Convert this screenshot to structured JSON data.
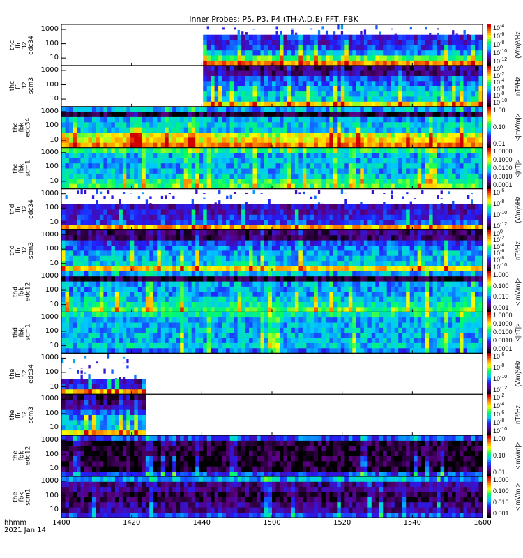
{
  "chart_data": {
    "type": "heatmap",
    "title": "Inner Probes: P5, P3, P4 (TH-A,D,E) FFT, FBK",
    "xlabel": "hhmm",
    "date_label": "2021 Jan 14",
    "x_ticks": [
      "1400",
      "1420",
      "1440",
      "1500",
      "1520",
      "1540",
      "1600"
    ],
    "xlim_minutes": [
      840,
      960
    ],
    "ylim_hz": [
      3,
      2200
    ],
    "y_ticks": [
      "10",
      "100",
      "1000"
    ],
    "y_tick_values": [
      10,
      100,
      1000
    ],
    "colormap": [
      "#000000",
      "#5a0080",
      "#2020ff",
      "#00c8ff",
      "#00ff60",
      "#ffff00",
      "#ff8000",
      "#d00000"
    ],
    "panels": [
      {
        "label": [
          "thc",
          "ffr",
          "32",
          "edc34"
        ],
        "coverage": [
          880,
          960
        ],
        "sparse_top": true,
        "intensity_profile": [
          0.85,
          0.6,
          0.4,
          0.3,
          0.25,
          0.25,
          -1,
          -1
        ],
        "cbar_ticks": [
          {
            "b": "10",
            "e": "-4"
          },
          {
            "b": "10",
            "e": "-6"
          },
          {
            "b": "10",
            "e": "-8"
          },
          {
            "b": "10",
            "e": "-10"
          },
          {
            "b": "10",
            "e": "-12"
          }
        ],
        "unit": "(V/m)²/Hz"
      },
      {
        "label": [
          "thc",
          "ffr",
          "32",
          "scm3"
        ],
        "coverage": [
          880,
          960
        ],
        "sparse_top": false,
        "intensity_profile": [
          0.75,
          0.45,
          0.45,
          0.4,
          0.35,
          0.3,
          0.15,
          0.12
        ],
        "cbar_ticks": [
          {
            "b": "10",
            "e": "0"
          },
          {
            "b": "10",
            "e": "-2"
          },
          {
            "b": "10",
            "e": "-4"
          },
          {
            "b": "10",
            "e": "-6"
          },
          {
            "b": "10",
            "e": "-8"
          },
          {
            "b": "10",
            "e": "-10"
          }
        ],
        "unit": "nT²/Hz"
      },
      {
        "label": [
          "thc",
          "fbk",
          "edc34"
        ],
        "coverage": [
          840,
          960
        ],
        "sparse_top": false,
        "intensity_profile": [
          0.85,
          0.75,
          0.7,
          0.45,
          0.45,
          0.4,
          0.05,
          0.4
        ],
        "cbar_ticks": [
          {
            "b": "1.00",
            "e": ""
          },
          {
            "b": "0.10",
            "e": ""
          },
          {
            "b": "0.01",
            "e": ""
          }
        ],
        "unit": "<|mV/m|>"
      },
      {
        "label": [
          "thc",
          "fbk",
          "scm1"
        ],
        "coverage": [
          840,
          960
        ],
        "sparse_top": false,
        "intensity_profile": [
          0.6,
          0.55,
          0.45,
          0.42,
          0.42,
          0.42,
          0.42,
          0.55
        ],
        "cbar_ticks": [
          {
            "b": "1.0000",
            "e": ""
          },
          {
            "b": "0.1000",
            "e": ""
          },
          {
            "b": "0.0100",
            "e": ""
          },
          {
            "b": "0.0010",
            "e": ""
          },
          {
            "b": "0.0001",
            "e": ""
          }
        ],
        "unit": "<|nT|>"
      },
      {
        "label": [
          "thd",
          "ffr",
          "32",
          "edc34"
        ],
        "coverage": [
          840,
          960
        ],
        "sparse_top": true,
        "intensity_profile": [
          0.8,
          0.3,
          0.25,
          0.22,
          0.2,
          -1,
          -1,
          -1
        ],
        "cbar_ticks": [
          {
            "b": "10",
            "e": "-6"
          },
          {
            "b": "10",
            "e": "-8"
          },
          {
            "b": "10",
            "e": "-10"
          },
          {
            "b": "10",
            "e": "-12"
          }
        ],
        "unit": "(V/m)²/Hz"
      },
      {
        "label": [
          "thd",
          "ffr",
          "32",
          "scm3"
        ],
        "coverage": [
          840,
          960
        ],
        "sparse_top": false,
        "intensity_profile": [
          0.75,
          0.45,
          0.42,
          0.4,
          0.35,
          0.3,
          0.12,
          0.12
        ],
        "cbar_ticks": [
          {
            "b": "10",
            "e": "0"
          },
          {
            "b": "10",
            "e": "-2"
          },
          {
            "b": "10",
            "e": "-4"
          },
          {
            "b": "10",
            "e": "-6"
          },
          {
            "b": "10",
            "e": "-8"
          },
          {
            "b": "10",
            "e": "-10"
          }
        ],
        "unit": "nT²/Hz"
      },
      {
        "label": [
          "thd",
          "fbk",
          "edc12"
        ],
        "coverage": [
          840,
          960
        ],
        "sparse_top": false,
        "intensity_profile": [
          0.6,
          0.5,
          0.45,
          0.4,
          0.4,
          0.4,
          0.05,
          0.4
        ],
        "cbar_ticks": [
          {
            "b": "1.000",
            "e": ""
          },
          {
            "b": "0.100",
            "e": ""
          },
          {
            "b": "0.010",
            "e": ""
          },
          {
            "b": "0.001",
            "e": ""
          }
        ],
        "unit": "<|mV/m|>"
      },
      {
        "label": [
          "thd",
          "fbk",
          "scm1"
        ],
        "coverage": [
          840,
          960
        ],
        "sparse_top": false,
        "intensity_profile": [
          0.35,
          0.45,
          0.42,
          0.42,
          0.42,
          0.42,
          0.42,
          0.5
        ],
        "cbar_ticks": [
          {
            "b": "1.0000",
            "e": ""
          },
          {
            "b": "0.1000",
            "e": ""
          },
          {
            "b": "0.0100",
            "e": ""
          },
          {
            "b": "0.0010",
            "e": ""
          },
          {
            "b": "0.0001",
            "e": ""
          }
        ],
        "unit": "<|nT|>"
      },
      {
        "label": [
          "the",
          "ffr",
          "32",
          "edc34"
        ],
        "coverage": [
          840,
          864
        ],
        "sparse_top": true,
        "intensity_profile": [
          0.8,
          0.25,
          0.2,
          -1,
          -1,
          -1,
          -1,
          -1
        ],
        "cbar_ticks": [
          {
            "b": "10",
            "e": "-6"
          },
          {
            "b": "10",
            "e": "-8"
          },
          {
            "b": "10",
            "e": "-10"
          },
          {
            "b": "10",
            "e": "-12"
          }
        ],
        "unit": "(V/m)²/Hz"
      },
      {
        "label": [
          "the",
          "ffr",
          "32",
          "scm3"
        ],
        "coverage": [
          840,
          864
        ],
        "sparse_top": false,
        "intensity_profile": [
          0.75,
          0.45,
          0.42,
          0.4,
          0.3,
          0.15,
          0.12,
          0.1
        ],
        "cbar_ticks": [
          {
            "b": "10",
            "e": "-2"
          },
          {
            "b": "10",
            "e": "-4"
          },
          {
            "b": "10",
            "e": "-6"
          },
          {
            "b": "10",
            "e": "-8"
          },
          {
            "b": "10",
            "e": "-10"
          }
        ],
        "unit": "nT²/Hz"
      },
      {
        "label": [
          "the",
          "fbk",
          "edc12"
        ],
        "coverage": [
          840,
          960
        ],
        "sparse_top": false,
        "intensity_profile": [
          0.3,
          0.05,
          0.05,
          0.05,
          0.05,
          0.05,
          0.05,
          0.3
        ],
        "cbar_ticks": [
          {
            "b": "1.00",
            "e": ""
          },
          {
            "b": "0.10",
            "e": ""
          },
          {
            "b": "0.01",
            "e": ""
          }
        ],
        "unit": "<|mV/m|>"
      },
      {
        "label": [
          "the",
          "fbk",
          "scm1"
        ],
        "coverage": [
          840,
          960
        ],
        "sparse_top": false,
        "intensity_profile": [
          0.3,
          0.15,
          0.15,
          0.08,
          0.08,
          0.15,
          0.15,
          0.4
        ],
        "cbar_ticks": [
          {
            "b": "1.000",
            "e": ""
          },
          {
            "b": "0.100",
            "e": ""
          },
          {
            "b": "0.010",
            "e": ""
          },
          {
            "b": "0.001",
            "e": ""
          }
        ],
        "unit": "<|mV/m|>"
      }
    ]
  }
}
